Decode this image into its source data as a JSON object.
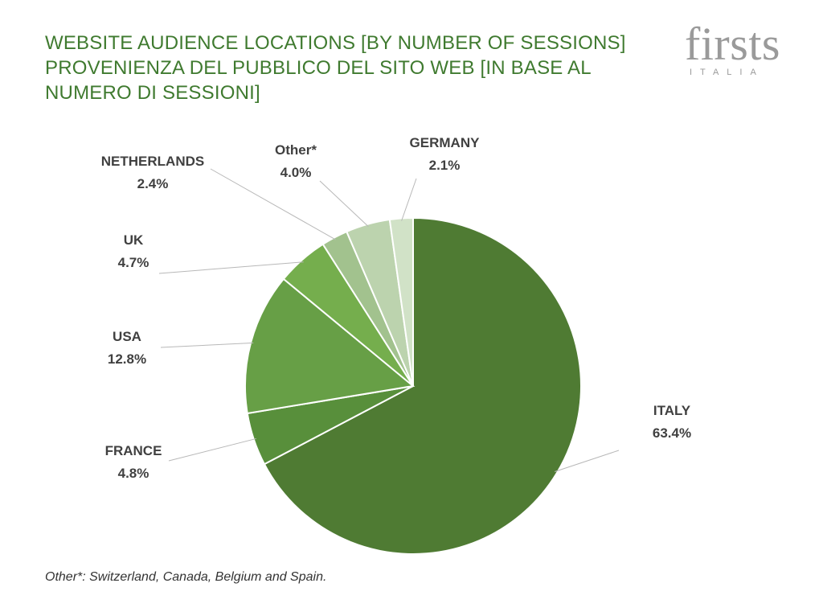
{
  "title": {
    "line1": "WEBSITE AUDIENCE LOCATIONS [BY NUMBER OF SESSIONS]",
    "line2": "PROVENIENZA DEL PUBBLICO DEL SITO WEB [IN BASE AL",
    "line3": "NUMERO DI SESSIONI]"
  },
  "logo": {
    "word": "firsts",
    "sub": "ITALIA"
  },
  "chart_data": {
    "type": "pie",
    "title": "WEBSITE AUDIENCE LOCATIONS [BY NUMBER OF SESSIONS] PROVENIENZA DEL PUBBLICO DEL SITO WEB [IN BASE AL NUMERO DI SESSIONI]",
    "categories": [
      "ITALY",
      "FRANCE",
      "USA",
      "UK",
      "NETHERLANDS",
      "Other*",
      "GERMANY"
    ],
    "values": [
      63.4,
      4.8,
      12.8,
      4.7,
      2.4,
      4.0,
      2.1
    ],
    "value_labels": [
      "63.4%",
      "4.8%",
      "12.8%",
      "4.7%",
      "2.4%",
      "4.0%",
      "2.1%"
    ],
    "colors": [
      "#4f7b33",
      "#588f3b",
      "#679f46",
      "#75ae4d",
      "#a2c28e",
      "#bcd3ae",
      "#d1e2c7"
    ],
    "start": "12 o'clock",
    "direction": "clockwise",
    "legend": "none"
  },
  "footnote": "Other*: Switzerland, Canada, Belgium and Spain."
}
